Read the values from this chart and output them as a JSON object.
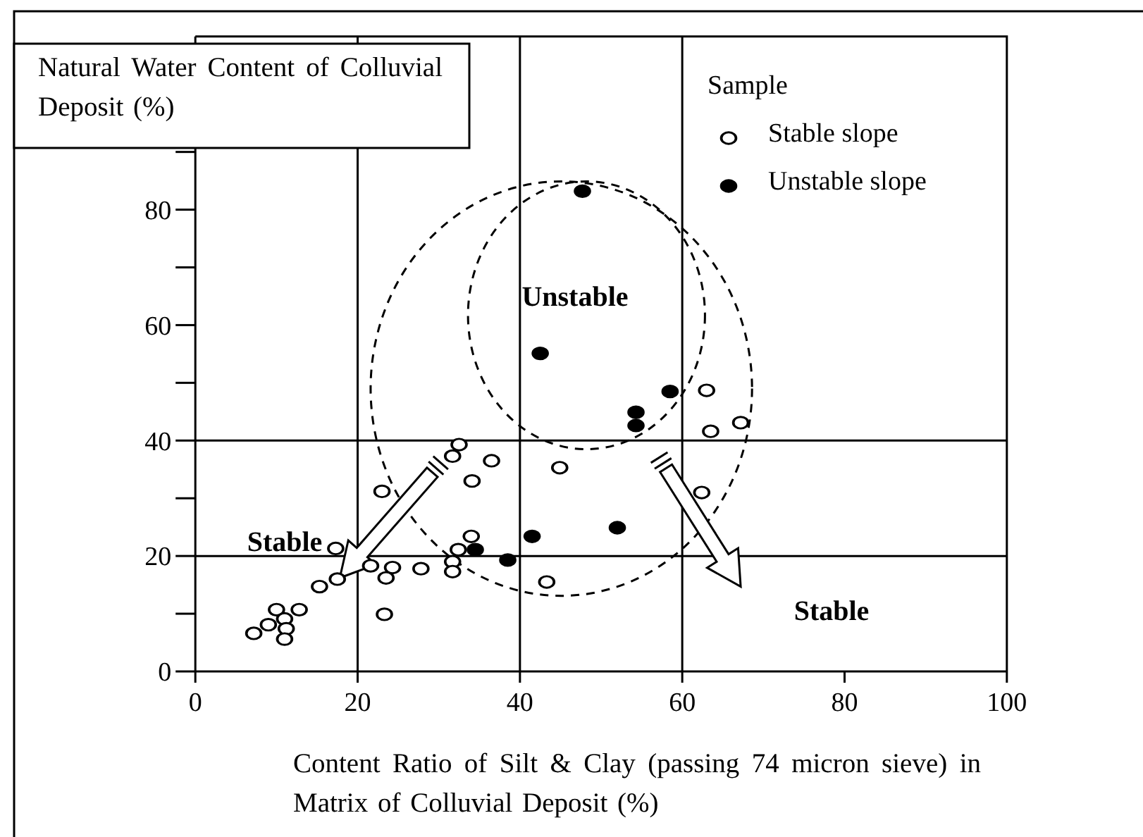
{
  "chart_data": {
    "type": "scatter",
    "xlabel": "Content Ratio of Silt & Clay (passing 74 micron sieve) in Matrix of Colluvial Deposit (%)",
    "ylabel": "Natural Water Content of Colluvial Deposit (%)",
    "legend_title": "Sample",
    "legend": "top right",
    "marker": "circle",
    "grid": false,
    "xlim": [
      0,
      100
    ],
    "xticks": [
      0,
      20,
      40,
      60,
      80,
      100
    ],
    "ylim": [
      0,
      110
    ],
    "yticks": [
      0,
      {
        "value": 10,
        "label": null
      },
      20,
      {
        "value": 30,
        "label": null
      },
      40,
      {
        "value": 50,
        "label": null
      },
      60,
      {
        "value": 70,
        "label": null
      },
      80,
      {
        "value": 90,
        "label": null
      }
    ],
    "series": [
      {
        "name": "Stable slope",
        "color": "#ffffff",
        "x": [
          63.0,
          67.2,
          63.5,
          32.5,
          31.7,
          36.5,
          44.9,
          34.1,
          23.0,
          62.4,
          34.0,
          32.4,
          17.3,
          21.6,
          24.3,
          27.8,
          31.7,
          31.7,
          23.5,
          17.5,
          15.3,
          43.3,
          23.3,
          10.0,
          12.8,
          11.0,
          9.0,
          11.2,
          7.2,
          11.0
        ],
        "values": [
          48.7,
          43.1,
          41.6,
          39.3,
          37.3,
          36.5,
          35.3,
          33.0,
          31.2,
          31.0,
          23.4,
          21.1,
          21.3,
          18.3,
          18.0,
          17.8,
          19.0,
          17.3,
          16.2,
          16.0,
          14.7,
          15.5,
          9.9,
          10.7,
          10.7,
          9.1,
          8.1,
          7.4,
          6.6,
          5.6
        ]
      },
      {
        "name": "Unstable slope",
        "color": "#000000",
        "x": [
          47.7,
          42.5,
          58.5,
          54.3,
          54.3,
          52.0,
          41.5,
          38.5,
          34.5
        ],
        "values": [
          83.2,
          55.1,
          48.5,
          44.9,
          42.6,
          24.9,
          23.4,
          19.3,
          21.1
        ]
      }
    ],
    "ref_lines": [
      {
        "axis": "x",
        "value": 20
      },
      {
        "axis": "x",
        "value": 40
      },
      {
        "axis": "x",
        "value": 60
      },
      {
        "axis": "y",
        "value": 20
      },
      {
        "axis": "y",
        "value": 40
      }
    ],
    "annotations": [
      "Unstable",
      "Stable",
      "Stable"
    ]
  }
}
